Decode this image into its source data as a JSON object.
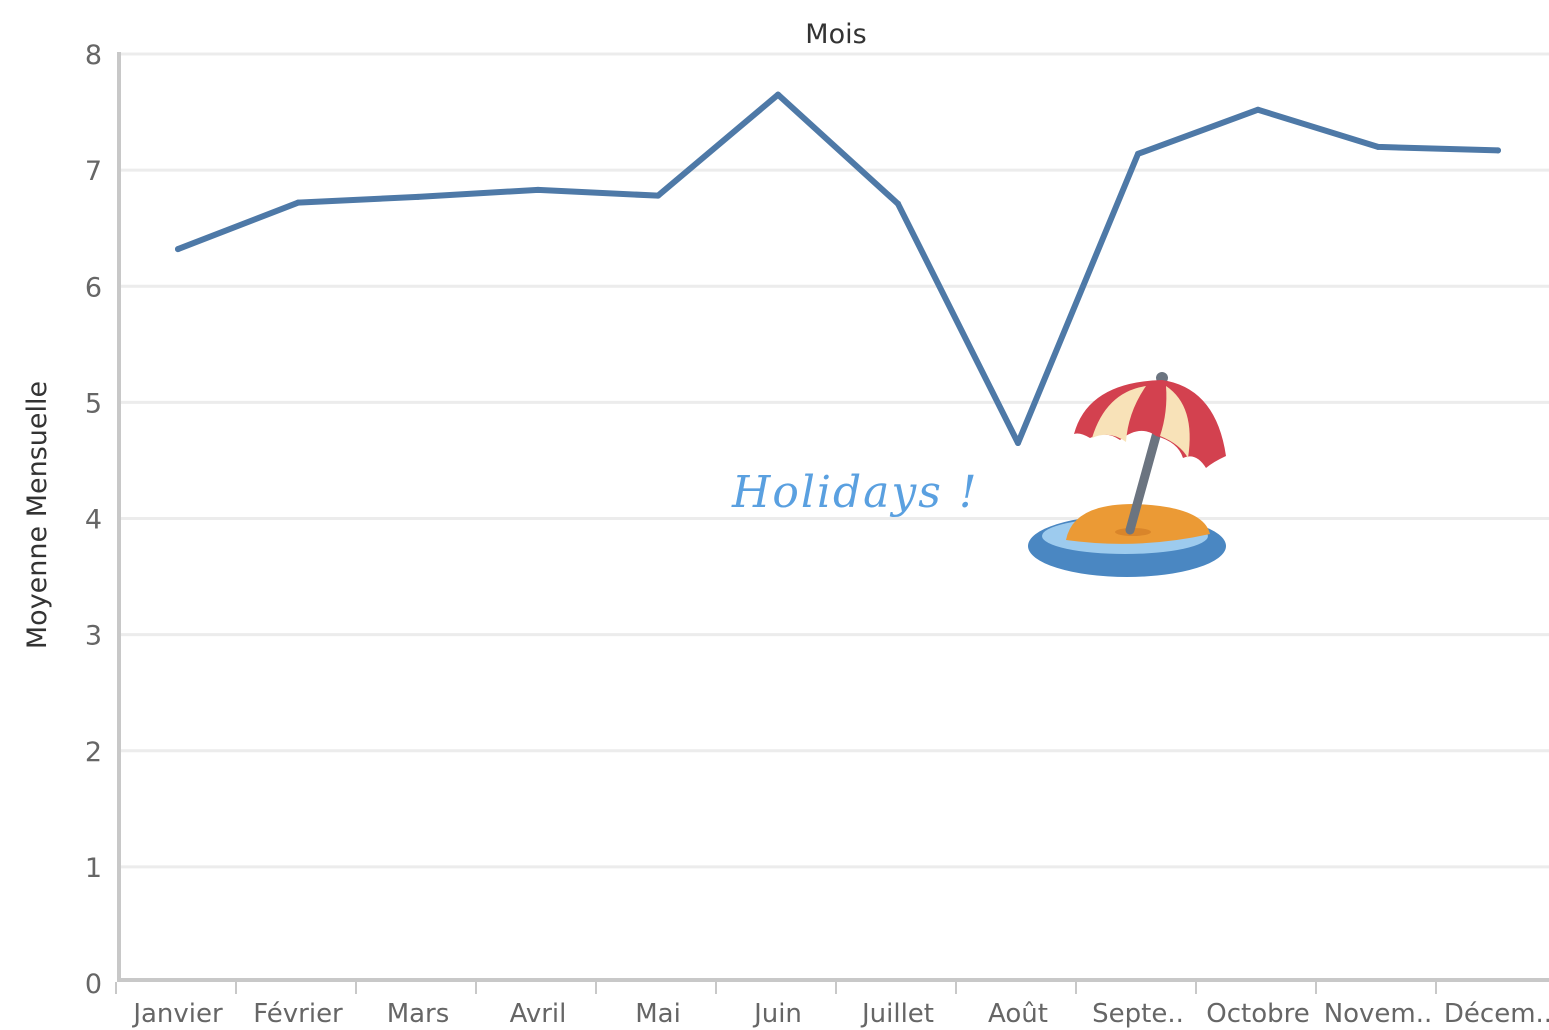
{
  "chart_data": {
    "type": "line",
    "title": "Mois",
    "ylabel": "Moyenne Mensuelle",
    "xlabel": "",
    "categories": [
      "Janvier",
      "Février",
      "Mars",
      "Avril",
      "Mai",
      "Juin",
      "Juillet",
      "Août",
      "Septe..",
      "Octobre",
      "Novem..",
      "Décem.."
    ],
    "series": [
      {
        "values": [
          6.32,
          6.72,
          6.77,
          6.83,
          6.78,
          7.65,
          6.71,
          4.65,
          7.14,
          7.52,
          7.2,
          7.17
        ]
      }
    ],
    "ylim": [
      0,
      8
    ],
    "yticks": [
      0,
      1,
      2,
      3,
      4,
      5,
      6,
      7,
      8
    ],
    "grid": "horizontal",
    "annotations": [
      {
        "text": "Holidays !",
        "icon": "beach-umbrella-island-icon",
        "near_category": "Août"
      }
    ],
    "colors": {
      "line": "#4e79a7",
      "grid": "#ececec",
      "axis": "#c8c8c8",
      "annotation": "#5aa0e0"
    }
  }
}
